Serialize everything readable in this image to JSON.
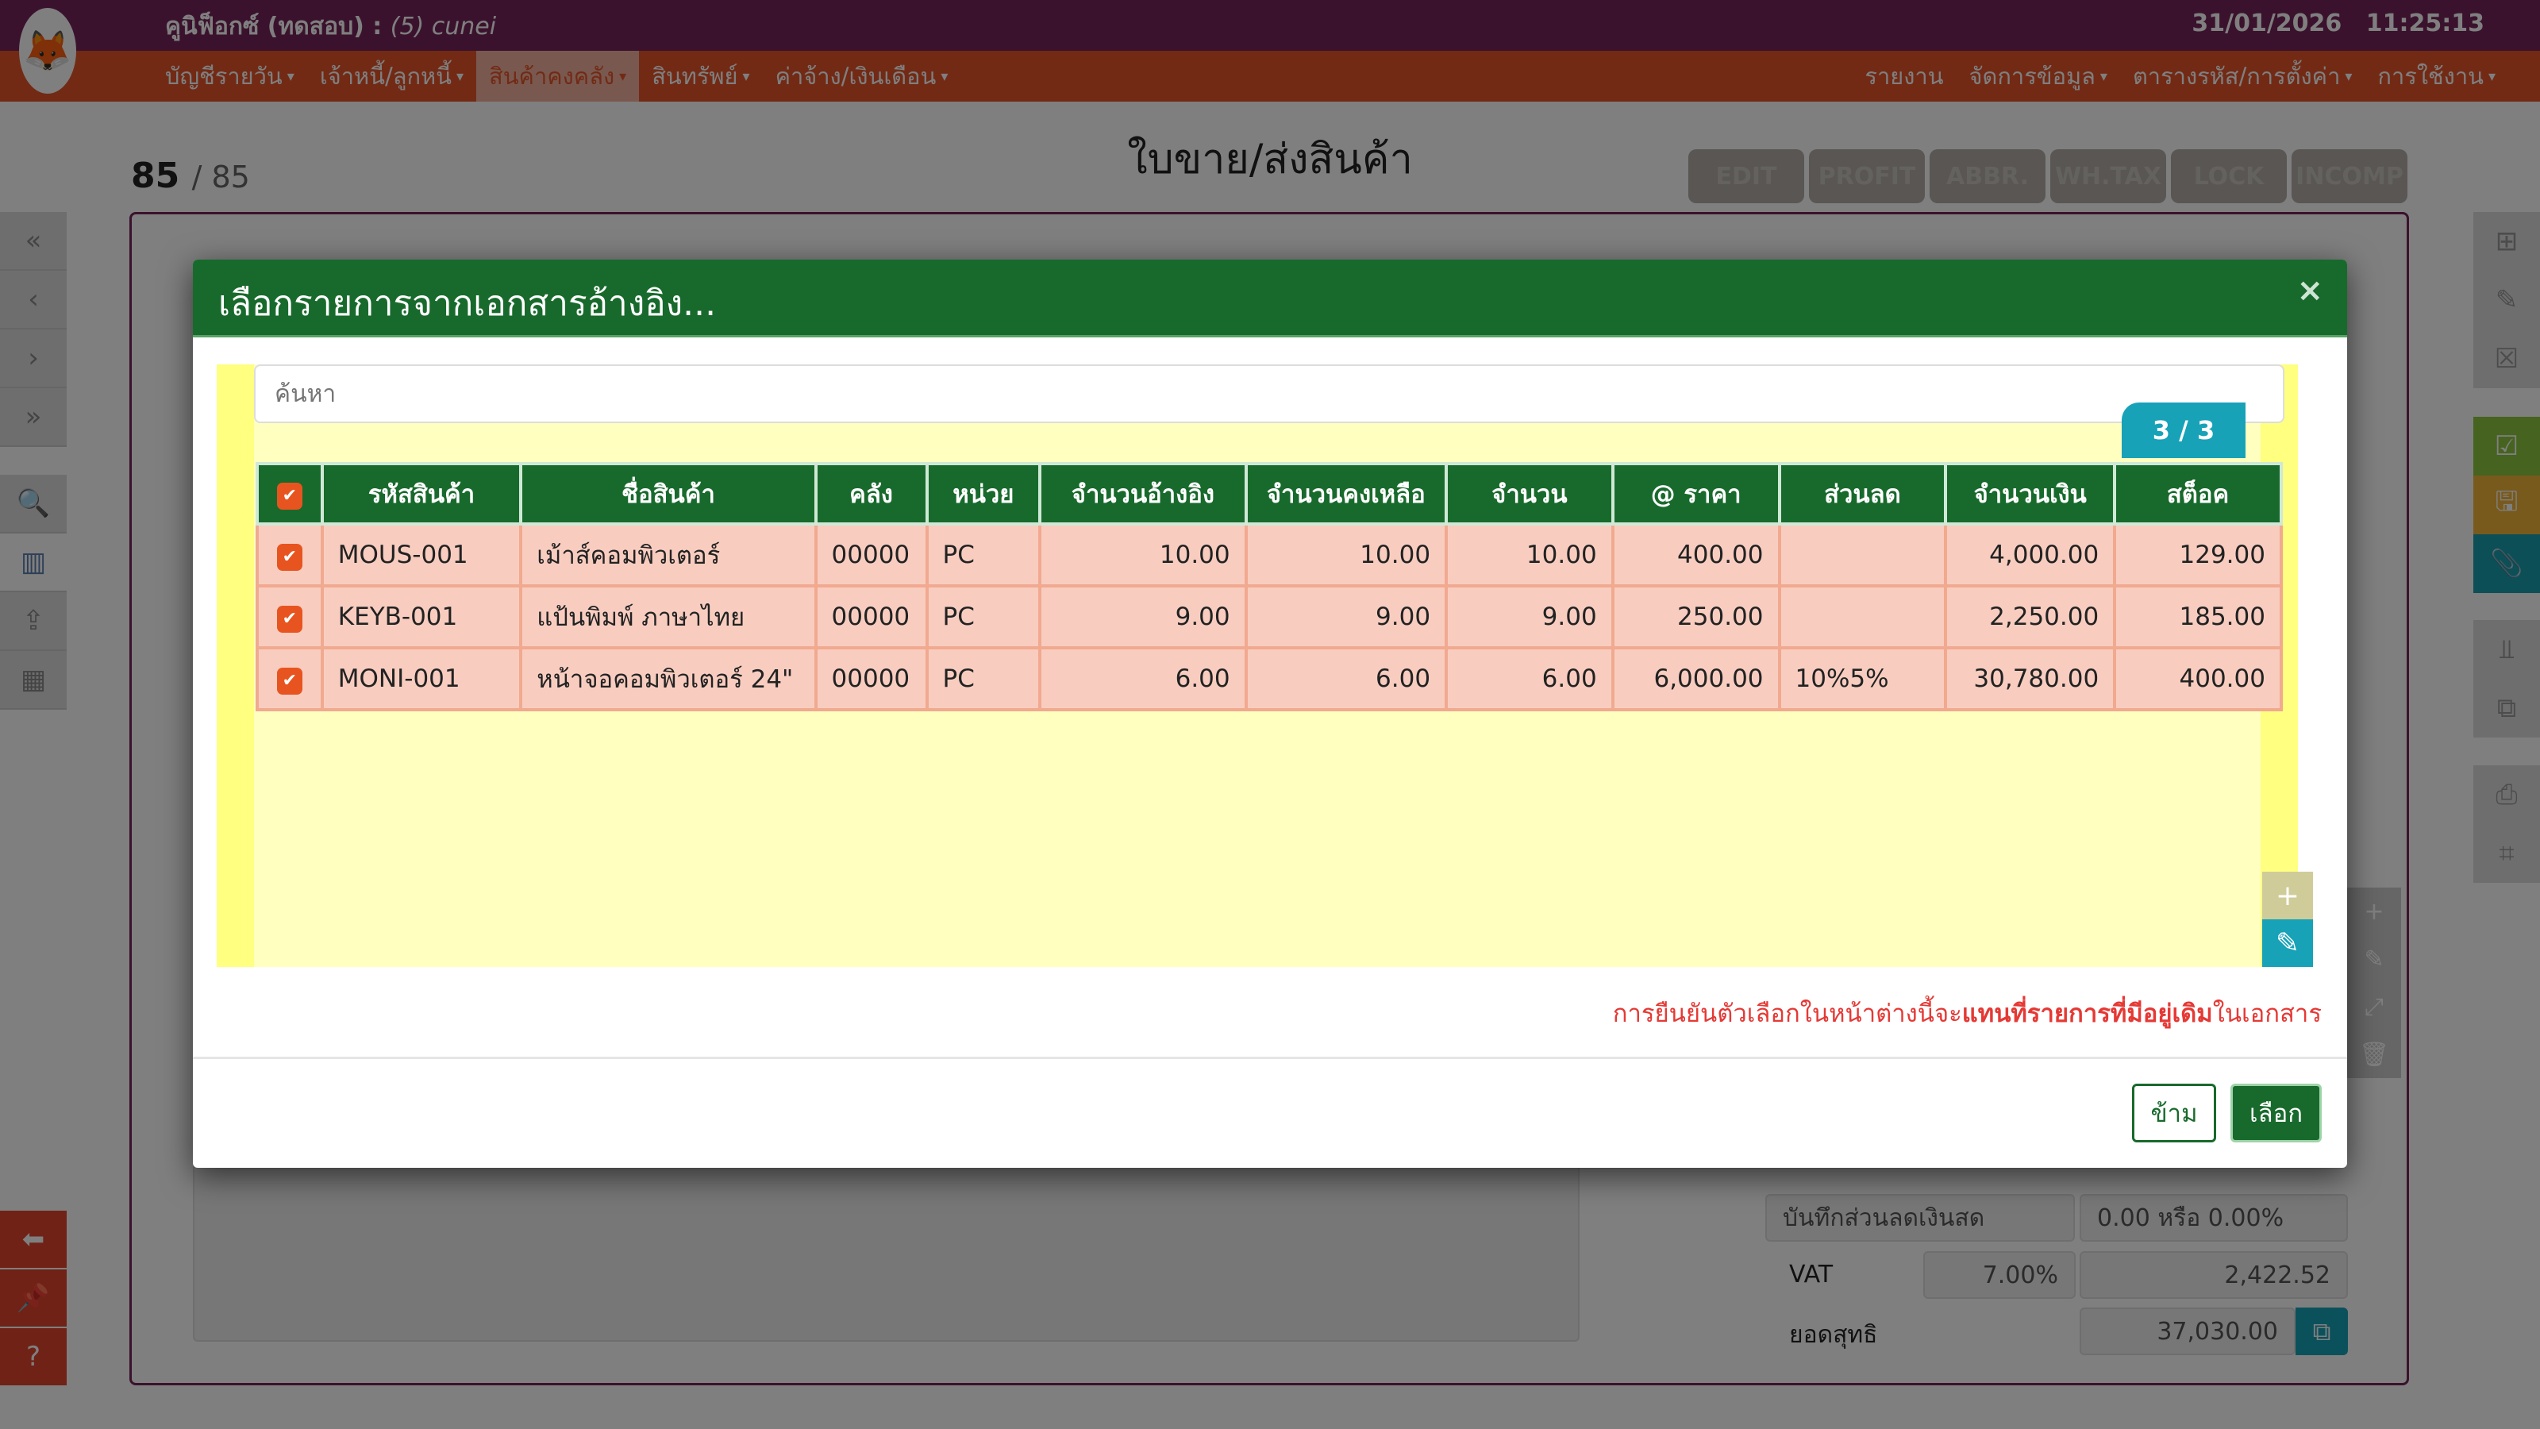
{
  "app": {
    "name": "คูนิฟ็อกซ์ (ทดสอบ)",
    "separator": " : ",
    "user": "(5) cunei",
    "date": "31/01/2026",
    "time": "11:25:13",
    "logo_icon": "fox-logo"
  },
  "menu_left": [
    {
      "label": "บัญชีรายวัน"
    },
    {
      "label": "เจ้าหนี้/ลูกหนี้"
    },
    {
      "label": "สินค้าคงคลัง",
      "active": true
    },
    {
      "label": "สินทรัพย์"
    },
    {
      "label": "ค่าจ้าง/เงินเดือน"
    }
  ],
  "menu_right": [
    {
      "label": "รายงาน",
      "caret": false
    },
    {
      "label": "จัดการข้อมูล",
      "caret": true
    },
    {
      "label": "ตารางรหัส/การตั้งค่า",
      "caret": true
    },
    {
      "label": "การใช้งาน",
      "caret": true
    }
  ],
  "page": {
    "record_current": "85",
    "record_total": "/ 85",
    "title": "ใบขาย/ส่งสินค้า",
    "tags": [
      "EDIT",
      "PROFIT",
      "ABBR.",
      "WH.TAX",
      "LOCK",
      "INCOMP"
    ],
    "cash_discount_label": "บันทึกส่วนลดเงินสด",
    "cash_discount_value": "0.00 หรือ 0.00%",
    "vat_label": "VAT",
    "vat_rate": "7.00%",
    "vat_amount": "2,422.52",
    "net_label": "ยอดสุทธิ",
    "net_amount": "37,030.00"
  },
  "modal": {
    "title": "เลือกรายการจากเอกสารอ้างอิง...",
    "close": "×",
    "search_placeholder": "ค้นหา",
    "count_badge": "3 / 3",
    "columns": [
      "",
      "รหัสสินค้า",
      "ชื่อสินค้า",
      "คลัง",
      "หน่วย",
      "จำนวนอ้างอิง",
      "จำนวนคงเหลือ",
      "จำนวน",
      "@ ราคา",
      "ส่วนลด",
      "จำนวนเงิน",
      "สต็อค"
    ],
    "rows": [
      {
        "checked": true,
        "code": "MOUS-001",
        "name": "เม้าส์คอมพิวเตอร์",
        "warehouse": "00000",
        "unit": "PC",
        "ref_qty": "10.00",
        "remain_qty": "10.00",
        "qty": "10.00",
        "price": "400.00",
        "discount": "",
        "amount": "4,000.00",
        "stock": "129.00"
      },
      {
        "checked": true,
        "code": "KEYB-001",
        "name": "แป้นพิมพ์ ภาษาไทย",
        "warehouse": "00000",
        "unit": "PC",
        "ref_qty": "9.00",
        "remain_qty": "9.00",
        "qty": "9.00",
        "price": "250.00",
        "discount": "",
        "amount": "2,250.00",
        "stock": "185.00"
      },
      {
        "checked": true,
        "code": "MONI-001",
        "name": "หน้าจอคอมพิวเตอร์ 24\"",
        "warehouse": "00000",
        "unit": "PC",
        "ref_qty": "6.00",
        "remain_qty": "6.00",
        "qty": "6.00",
        "price": "6,000.00",
        "discount": "10%5%",
        "amount": "30,780.00",
        "stock": "400.00"
      }
    ],
    "warning_pre": "การยืนยันตัวเลือกในหน้าต่างนี้จะ",
    "warning_bold": "แทนที่รายการที่มีอยู่เดิม",
    "warning_post": "ในเอกสาร",
    "skip_label": "ข้าม",
    "choose_label": "เลือก"
  },
  "colors": {
    "header_green": "#186a2c",
    "checkbox": "#e8541f",
    "row_bg": "#f8cdc0",
    "badge": "#17a2b8",
    "warning": "#e53935"
  }
}
